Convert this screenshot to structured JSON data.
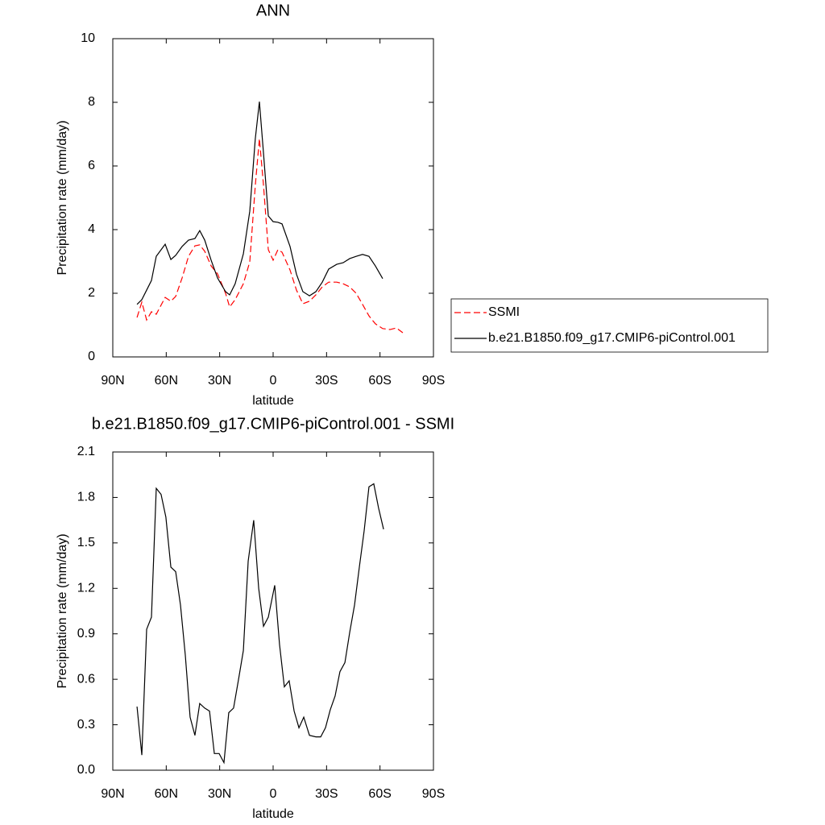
{
  "chart_data": [
    {
      "type": "line",
      "title": "ANN",
      "xlabel": "latitude",
      "ylabel": "Precipitation rate (mm/day)",
      "x": [
        76.4,
        73.7,
        71,
        68.3,
        65.6,
        60.6,
        57.4,
        54.7,
        51.1,
        47.5,
        43.9,
        41.2,
        38.4,
        34.8,
        31.2,
        26.7,
        24.4,
        21.3,
        16.7,
        13.1,
        10,
        7.7,
        5.4,
        2.7,
        0,
        -2.7,
        -5,
        -9.5,
        -13.1,
        -16.7,
        -20.4,
        -24,
        -27.6,
        -31.2,
        -35.7,
        -39.3,
        -43,
        -46.6,
        -50.2,
        -53.8,
        -57.4,
        -61.5,
        -65.6,
        -69.2,
        -72.8
      ],
      "series": [
        {
          "name": "SSMI",
          "color": "#ff0000",
          "line_style": "dashed",
          "values": [
            1.24,
            1.72,
            1.16,
            1.42,
            1.34,
            1.87,
            1.75,
            1.9,
            2.48,
            3.16,
            3.49,
            3.52,
            3.32,
            2.86,
            2.61,
            2.0,
            1.57,
            1.8,
            2.3,
            2.99,
            5.39,
            6.86,
            5.39,
            3.37,
            3.04,
            3.37,
            3.29,
            2.73,
            2.1,
            1.67,
            1.75,
            1.95,
            2.2,
            2.35,
            2.35,
            2.3,
            2.2,
            2.0,
            1.65,
            1.29,
            1.04,
            0.89,
            0.86,
            0.91,
            0.76
          ]
        },
        {
          "name": "b.e21.B1850.f09_g17.CMIP6-piControl.001",
          "color": "#000000",
          "line_style": "solid",
          "values": [
            1.65,
            1.8,
            2.1,
            2.4,
            3.16,
            3.54,
            3.06,
            3.19,
            3.47,
            3.67,
            3.72,
            3.97,
            3.67,
            3.04,
            2.48,
            2.05,
            1.95,
            2.3,
            3.24,
            4.58,
            6.86,
            8.02,
            6.4,
            4.43,
            4.25,
            4.23,
            4.18,
            3.47,
            2.6,
            2.05,
            1.92,
            2.05,
            2.35,
            2.76,
            2.91,
            2.96,
            3.09,
            3.16,
            3.22,
            3.16,
            2.86,
            2.46,
            null,
            null,
            null
          ]
        }
      ],
      "xlim": [
        90,
        -90
      ],
      "xticks": [
        {
          "value": 90,
          "label": "90N"
        },
        {
          "value": 60,
          "label": "60N"
        },
        {
          "value": 30,
          "label": "30N"
        },
        0,
        {
          "value": -30,
          "label": "30S"
        },
        {
          "value": -60,
          "label": "60S"
        },
        {
          "value": -90,
          "label": "90S"
        }
      ],
      "ylim": [
        0,
        10
      ],
      "yticks": [
        0,
        2,
        4,
        6,
        8,
        10
      ],
      "legend": "right"
    },
    {
      "type": "line",
      "title": "b.e21.B1850.f09_g17.CMIP6-piControl.001 - SSMI",
      "xlabel": "latitude",
      "ylabel": "Precipitation rate (mm/day)",
      "x": [
        76.4,
        73.7,
        71,
        68.3,
        65.6,
        62.9,
        60.2,
        57.4,
        54.7,
        52,
        49.3,
        46.6,
        43.9,
        41.2,
        38.4,
        35.7,
        33,
        30.3,
        27.6,
        24.9,
        22.2,
        19.4,
        16.7,
        14,
        10.9,
        8.1,
        5.4,
        2.7,
        -0.9,
        -3.6,
        -6.3,
        -9,
        -11.8,
        -14.5,
        -17.2,
        -20.4,
        -24,
        -26.7,
        -29.4,
        -32.1,
        -34.8,
        -37.5,
        -40.3,
        -43,
        -45.7,
        -48.4,
        -51.1,
        -53.8,
        -56.5,
        -59.2,
        -62
      ],
      "values": [
        0.42,
        0.1,
        0.93,
        1.01,
        1.86,
        1.82,
        1.67,
        1.34,
        1.31,
        1.09,
        0.76,
        0.35,
        0.23,
        0.44,
        0.41,
        0.39,
        0.11,
        0.11,
        0.05,
        0.38,
        0.41,
        0.6,
        0.79,
        1.38,
        1.65,
        1.2,
        0.95,
        1.01,
        1.22,
        0.83,
        0.55,
        0.59,
        0.39,
        0.28,
        0.35,
        0.23,
        0.22,
        0.22,
        0.28,
        0.4,
        0.49,
        0.65,
        0.71,
        0.91,
        1.09,
        1.34,
        1.58,
        1.87,
        1.89,
        1.73,
        1.59
      ],
      "color": "#000000",
      "xlim": [
        90,
        -90
      ],
      "xticks": [
        {
          "value": 90,
          "label": "90N"
        },
        {
          "value": 60,
          "label": "60N"
        },
        {
          "value": 30,
          "label": "30N"
        },
        0,
        {
          "value": -30,
          "label": "30S"
        },
        {
          "value": -60,
          "label": "60S"
        },
        {
          "value": -90,
          "label": "90S"
        }
      ],
      "ylim": [
        0,
        2.1
      ],
      "yticks": [
        {
          "value": 0,
          "label": "0.0"
        },
        0.3,
        0.6,
        0.9,
        1.2,
        1.5,
        1.8,
        2.1
      ]
    }
  ]
}
